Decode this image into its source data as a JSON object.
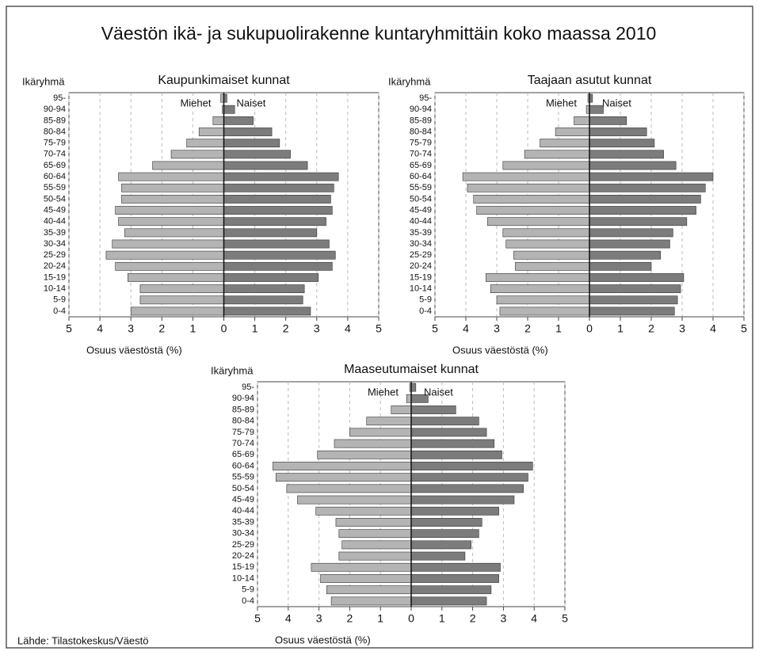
{
  "title": "Väestön ikä- ja sukupuolirakenne kuntaryhmittäin koko maassa 2010",
  "source": "Lähde: Tilastokeskus/Väestö",
  "chart_data": [
    {
      "type": "pyramid",
      "title": "Kaupunkimaiset kunnat",
      "y_axis_label": "Ikäryhmä",
      "x_axis_label": "Osuus väestöstä (%)",
      "categories": [
        "0-4",
        "5-9",
        "10-14",
        "15-19",
        "20-24",
        "25-29",
        "30-34",
        "35-39",
        "40-44",
        "45-49",
        "50-54",
        "55-59",
        "60-64",
        "65-69",
        "70-74",
        "75-79",
        "80-84",
        "85-89",
        "90-94",
        "95-"
      ],
      "series": [
        {
          "name": "Miehet",
          "color": "#b4b4b4",
          "side": "left",
          "values": [
            3.0,
            2.7,
            2.7,
            3.1,
            3.5,
            3.8,
            3.6,
            3.2,
            3.4,
            3.5,
            3.3,
            3.3,
            3.4,
            2.3,
            1.7,
            1.2,
            0.8,
            0.35,
            0.05,
            0.1
          ]
        },
        {
          "name": "Naiset",
          "color": "#7c7c7c",
          "side": "right",
          "values": [
            2.8,
            2.55,
            2.6,
            3.05,
            3.5,
            3.6,
            3.4,
            3.0,
            3.3,
            3.5,
            3.45,
            3.55,
            3.7,
            2.7,
            2.15,
            1.8,
            1.55,
            0.95,
            0.35,
            0.1
          ]
        }
      ],
      "xlim": [
        0,
        5
      ],
      "xticks": [
        0,
        1,
        2,
        3,
        4,
        5
      ],
      "grid": true
    },
    {
      "type": "pyramid",
      "title": "Taajaan asutut kunnat",
      "y_axis_label": "Ikäryhmä",
      "x_axis_label": "Osuus väestöstä (%)",
      "categories": [
        "0-4",
        "5-9",
        "10-14",
        "15-19",
        "20-24",
        "25-29",
        "30-34",
        "35-39",
        "40-44",
        "45-49",
        "50-54",
        "55-59",
        "60-64",
        "65-69",
        "70-74",
        "75-79",
        "80-84",
        "85-89",
        "90-94",
        "95-"
      ],
      "series": [
        {
          "name": "Miehet",
          "color": "#b4b4b4",
          "side": "left",
          "values": [
            2.9,
            3.0,
            3.2,
            3.35,
            2.4,
            2.45,
            2.7,
            2.8,
            3.3,
            3.65,
            3.75,
            3.95,
            4.1,
            2.8,
            2.1,
            1.6,
            1.1,
            0.5,
            0.1,
            0.05
          ]
        },
        {
          "name": "Naiset",
          "color": "#7c7c7c",
          "side": "right",
          "values": [
            2.75,
            2.85,
            2.95,
            3.05,
            2.0,
            2.3,
            2.6,
            2.7,
            3.15,
            3.45,
            3.6,
            3.75,
            4.0,
            2.8,
            2.4,
            2.1,
            1.85,
            1.2,
            0.45,
            0.1
          ]
        }
      ],
      "xlim": [
        0,
        5
      ],
      "xticks": [
        0,
        1,
        2,
        3,
        4,
        5
      ],
      "grid": true
    },
    {
      "type": "pyramid",
      "title": "Maaseutumaiset kunnat",
      "y_axis_label": "Ikäryhmä",
      "x_axis_label": "Osuus väestöstä (%)",
      "categories": [
        "0-4",
        "5-9",
        "10-14",
        "15-19",
        "20-24",
        "25-29",
        "30-34",
        "35-39",
        "40-44",
        "45-49",
        "50-54",
        "55-59",
        "60-64",
        "65-69",
        "70-74",
        "75-79",
        "80-84",
        "85-89",
        "90-94",
        "95-"
      ],
      "series": [
        {
          "name": "Miehet",
          "color": "#b4b4b4",
          "side": "left",
          "values": [
            2.6,
            2.75,
            2.95,
            3.25,
            2.35,
            2.25,
            2.35,
            2.45,
            3.1,
            3.7,
            4.05,
            4.4,
            4.5,
            3.05,
            2.5,
            2.0,
            1.45,
            0.65,
            0.15,
            0.05
          ]
        },
        {
          "name": "Naiset",
          "color": "#7c7c7c",
          "side": "right",
          "values": [
            2.45,
            2.6,
            2.85,
            2.9,
            1.75,
            1.95,
            2.2,
            2.3,
            2.85,
            3.35,
            3.65,
            3.8,
            3.95,
            2.95,
            2.7,
            2.45,
            2.2,
            1.45,
            0.55,
            0.15
          ]
        }
      ],
      "xlim": [
        0,
        5
      ],
      "xticks": [
        0,
        1,
        2,
        3,
        4,
        5
      ],
      "grid": true
    }
  ]
}
